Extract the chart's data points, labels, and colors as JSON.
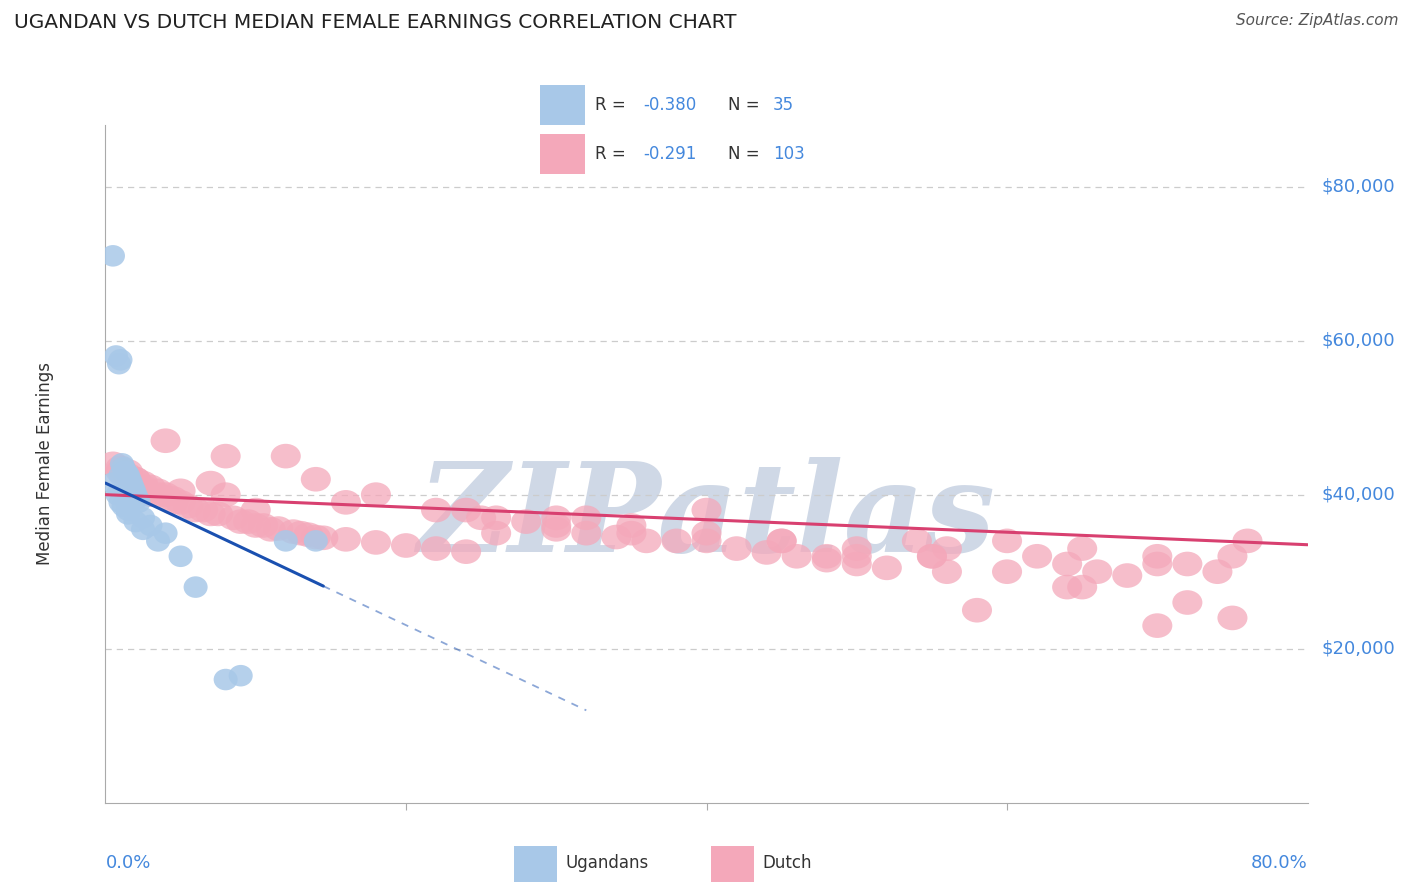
{
  "title": "UGANDAN VS DUTCH MEDIAN FEMALE EARNINGS CORRELATION CHART",
  "source": "Source: ZipAtlas.com",
  "ylabel": "Median Female Earnings",
  "xlim": [
    0.0,
    0.8
  ],
  "ylim": [
    0,
    88000
  ],
  "ugandan_color": "#a8c8e8",
  "dutch_color": "#f4a8ba",
  "ugandan_line_color": "#1a50b0",
  "dutch_line_color": "#d84070",
  "title_color": "#222222",
  "label_color": "#4488dd",
  "grid_color": "#cccccc",
  "watermark_color": "#cfd8e6",
  "R_ugandan": "-0.380",
  "N_ugandan": "35",
  "R_dutch": "-0.291",
  "N_dutch": "103",
  "ugandan_points_x": [
    0.005,
    0.007,
    0.009,
    0.01,
    0.011,
    0.012,
    0.013,
    0.014,
    0.015,
    0.016,
    0.017,
    0.018,
    0.019,
    0.02,
    0.021,
    0.022,
    0.025,
    0.03,
    0.04,
    0.05,
    0.06,
    0.08,
    0.09,
    0.005,
    0.008,
    0.01,
    0.01,
    0.012,
    0.015,
    0.015,
    0.02,
    0.025,
    0.035,
    0.12,
    0.14
  ],
  "ugandan_points_y": [
    71000,
    58000,
    57000,
    57500,
    44000,
    43500,
    43000,
    42800,
    42500,
    42000,
    41500,
    41000,
    40500,
    40000,
    39500,
    39000,
    37000,
    36000,
    35000,
    32000,
    28000,
    16000,
    16500,
    41500,
    40000,
    39000,
    42500,
    38500,
    38000,
    37500,
    36500,
    35500,
    34000,
    34000,
    34000
  ],
  "dutch_points_x": [
    0.005,
    0.01,
    0.015,
    0.02,
    0.025,
    0.03,
    0.035,
    0.04,
    0.045,
    0.05,
    0.06,
    0.07,
    0.08,
    0.09,
    0.1,
    0.11,
    0.12,
    0.13,
    0.14,
    0.015,
    0.025,
    0.035,
    0.045,
    0.055,
    0.065,
    0.075,
    0.085,
    0.095,
    0.105,
    0.115,
    0.125,
    0.135,
    0.145,
    0.16,
    0.18,
    0.2,
    0.22,
    0.24,
    0.26,
    0.28,
    0.3,
    0.32,
    0.34,
    0.36,
    0.38,
    0.4,
    0.42,
    0.44,
    0.46,
    0.48,
    0.5,
    0.52,
    0.54,
    0.56,
    0.58,
    0.6,
    0.62,
    0.64,
    0.66,
    0.68,
    0.7,
    0.72,
    0.74,
    0.76,
    0.01,
    0.02,
    0.03,
    0.05,
    0.07,
    0.1,
    0.14,
    0.18,
    0.22,
    0.26,
    0.3,
    0.35,
    0.4,
    0.45,
    0.5,
    0.55,
    0.6,
    0.65,
    0.7,
    0.75,
    0.25,
    0.35,
    0.45,
    0.55,
    0.65,
    0.75,
    0.08,
    0.16,
    0.24,
    0.32,
    0.4,
    0.48,
    0.56,
    0.64,
    0.72,
    0.3,
    0.5,
    0.7,
    0.04
  ],
  "dutch_points_y": [
    44000,
    43500,
    43000,
    42000,
    41500,
    41000,
    40500,
    40000,
    39500,
    39000,
    38000,
    37500,
    45000,
    36500,
    36000,
    35500,
    45000,
    35000,
    34500,
    42500,
    41000,
    40000,
    39000,
    38500,
    38000,
    37500,
    37000,
    36500,
    36000,
    35600,
    35200,
    34800,
    34400,
    34200,
    33800,
    33400,
    33000,
    32600,
    35000,
    36500,
    35500,
    35000,
    34500,
    34000,
    34000,
    38000,
    33000,
    32500,
    32000,
    31500,
    31000,
    30500,
    34000,
    33000,
    25000,
    34000,
    32000,
    31000,
    30000,
    29500,
    32000,
    31000,
    30000,
    34000,
    43000,
    42000,
    40000,
    40500,
    41500,
    38000,
    42000,
    40000,
    38000,
    37000,
    36000,
    36000,
    35000,
    34000,
    33000,
    32000,
    30000,
    28000,
    23000,
    24000,
    37000,
    35000,
    34000,
    32000,
    33000,
    32000,
    40000,
    39000,
    38000,
    37000,
    34000,
    32000,
    30000,
    28000,
    26000,
    37000,
    32000,
    31000,
    47000
  ]
}
